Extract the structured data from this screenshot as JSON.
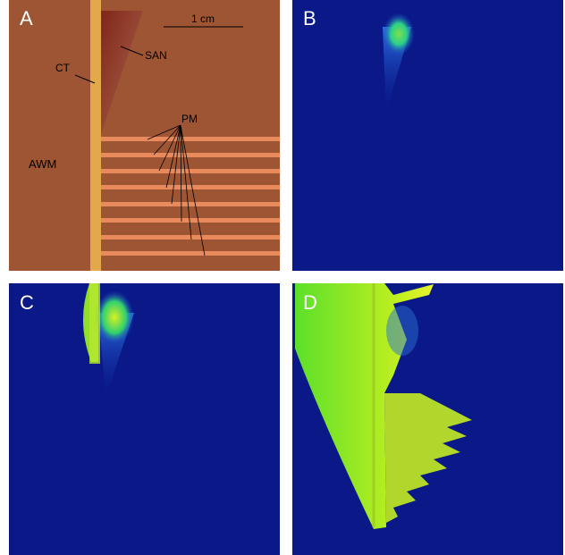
{
  "panels": {
    "a": {
      "label": "A",
      "scale_bar": "1 cm",
      "annotations": {
        "ct": "CT",
        "san": "SAN",
        "pm": "PM",
        "awm": "AWM"
      }
    },
    "b": {
      "label": "B"
    },
    "c": {
      "label": "C"
    },
    "d": {
      "label": "D"
    }
  }
}
